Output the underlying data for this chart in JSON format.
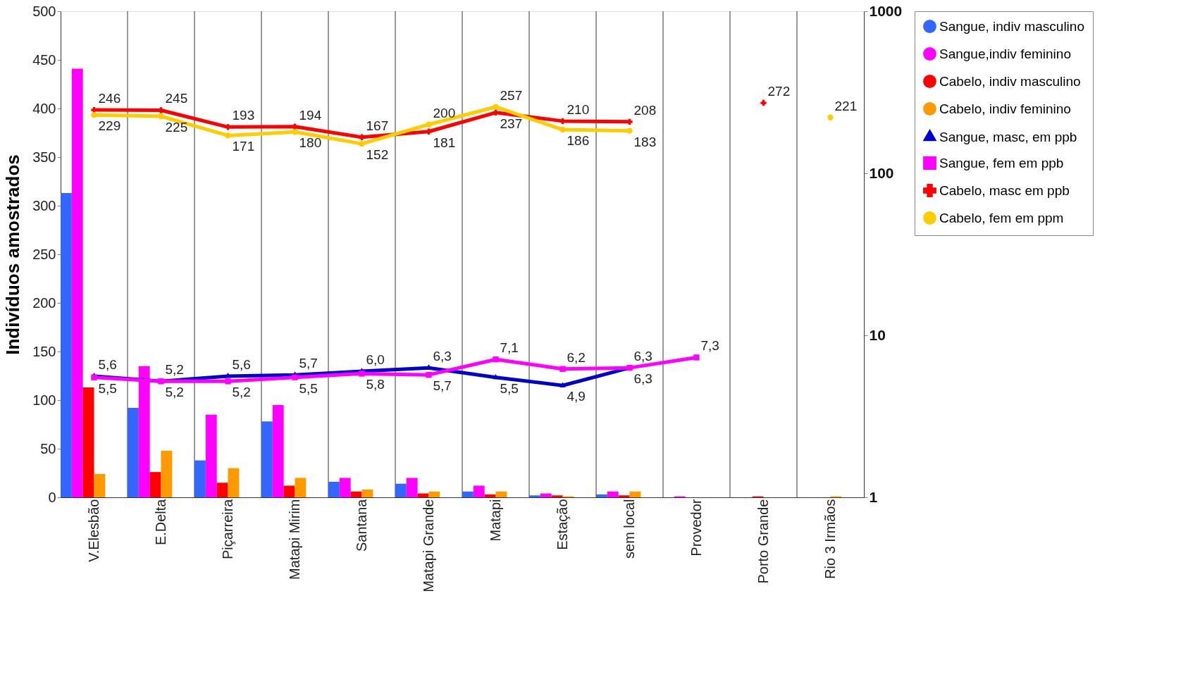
{
  "chart_data": {
    "type": "bar",
    "ylabel": "Indivíduos amostrados",
    "categories": [
      "V.Elesbão",
      "E.Delta",
      "Piçarreira",
      "Matapi Mirim",
      "Santana",
      "Matapi Grande",
      "Matapi",
      "Estação",
      "sem local",
      "Provedor",
      "Porto Grande",
      "Rio 3 Irmãos"
    ],
    "ylim": [
      0,
      500
    ],
    "yticks": [
      0,
      50,
      100,
      150,
      200,
      250,
      300,
      350,
      400,
      450,
      500
    ],
    "y2lim": [
      1,
      1000
    ],
    "y2ticks": [
      1,
      10,
      100,
      1000
    ],
    "log": "y2",
    "grid": "x",
    "legend": "right",
    "series": [
      {
        "name": "Sangue, indiv masculino",
        "color": "#3366ff",
        "values": [
          313,
          92,
          38,
          78,
          16,
          14,
          6,
          2,
          3,
          0,
          0,
          0
        ]
      },
      {
        "name": "Sangue,indiv feminino",
        "color": "#ff00ff",
        "values": [
          441,
          135,
          85,
          95,
          20,
          20,
          12,
          4,
          6,
          1,
          0,
          0
        ]
      },
      {
        "name": "Cabelo, indiv masculino",
        "color": "#ff0000",
        "values": [
          113,
          26,
          15,
          12,
          6,
          4,
          3,
          2,
          2,
          0,
          1,
          0
        ]
      },
      {
        "name": "Cabelo, indiv feminino",
        "color": "#ff9900",
        "values": [
          24,
          48,
          30,
          20,
          8,
          6,
          6,
          1,
          6,
          0,
          0,
          1
        ]
      },
      {
        "name": "Sangue, masc, em ppb",
        "type": "line",
        "axis": "y2",
        "marker": "triangle",
        "color": "#0000cc",
        "values": [
          5.6,
          5.2,
          5.6,
          5.7,
          6.0,
          6.3,
          5.5,
          4.9,
          6.3,
          null,
          null,
          null
        ],
        "value_labels": [
          "5,6",
          "5,2",
          "5,6",
          "5,7",
          "6,0",
          "6,3",
          "5,5",
          "4,9",
          "6,3",
          null,
          null,
          null
        ]
      },
      {
        "name": "Sangue, fem em ppb",
        "type": "line",
        "axis": "y2",
        "marker": "square",
        "color": "#ff00ff",
        "values": [
          5.5,
          5.2,
          5.2,
          5.5,
          5.8,
          5.7,
          7.1,
          6.2,
          6.3,
          7.3,
          null,
          null
        ],
        "value_labels": [
          "5,5",
          "5,2",
          "5,2",
          "5,5",
          "5,8",
          "5,7",
          "7,1",
          "6,2",
          "6,3",
          "7,3",
          null,
          null
        ]
      },
      {
        "name": "Cabelo, masc em ppb",
        "type": "line",
        "axis": "y2",
        "marker": "cross",
        "color": "#ff0000",
        "values": [
          246,
          245,
          193,
          194,
          167,
          181,
          237,
          210,
          208,
          null,
          272,
          null
        ],
        "value_labels": [
          "246",
          "245",
          "193",
          "194",
          "167",
          "181",
          "237",
          "210",
          "208",
          null,
          "272",
          null
        ]
      },
      {
        "name": "Cabelo, fem  em ppm",
        "type": "line",
        "axis": "y2",
        "marker": "circle",
        "color": "#ffcc00",
        "values": [
          229,
          225,
          171,
          180,
          152,
          200,
          257,
          186,
          183,
          null,
          null,
          221
        ],
        "value_labels": [
          "229",
          "225",
          "171",
          "180",
          "152",
          "200",
          "257",
          "186",
          "183",
          null,
          null,
          "221"
        ]
      }
    ]
  }
}
